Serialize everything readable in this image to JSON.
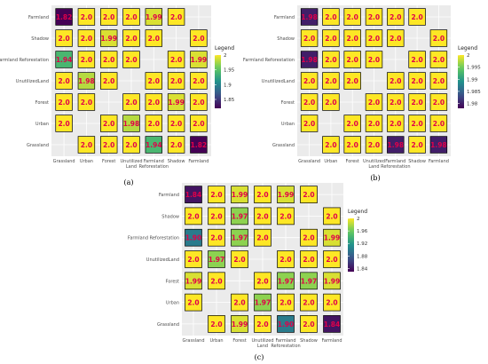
{
  "chart_data": [
    {
      "type": "heatmap",
      "label": "(a)",
      "legend": {
        "title": "Legend",
        "ticks": [
          2,
          1.95,
          1.9,
          1.85
        ],
        "range": [
          1.82,
          2.0
        ]
      },
      "rows": [
        "Farmland",
        "Shadow",
        "Farmland Reforestation",
        "UnutilizedLand",
        "Forest",
        "Urban",
        "Grassland"
      ],
      "cols": [
        "Grassland",
        "Urban",
        "Forest",
        "Unutilized Land",
        "Farmland Reforestation",
        "Shadow",
        "Farmland"
      ],
      "cells": [
        [
          "1.82",
          "2.0",
          "2.0",
          "2.0",
          "1.99",
          "2.0",
          null
        ],
        [
          "2.0",
          "2.0",
          "1.99",
          "2.0",
          "2.0",
          null,
          "2.0"
        ],
        [
          "1.94",
          "2.0",
          "2.0",
          "2.0",
          null,
          "2.0",
          "1.99"
        ],
        [
          "2.0",
          "1.98",
          "2.0",
          null,
          "2.0",
          "2.0",
          "2.0"
        ],
        [
          "2.0",
          "2.0",
          null,
          "2.0",
          "2.0",
          "1.99",
          "2.0"
        ],
        [
          "2.0",
          null,
          "2.0",
          "1.98",
          "2.0",
          "2.0",
          "2.0"
        ],
        [
          null,
          "2.0",
          "2.0",
          "2.0",
          "1.94",
          "2.0",
          "1.82"
        ]
      ]
    },
    {
      "type": "heatmap",
      "label": "(b)",
      "legend": {
        "title": "Legend",
        "ticks": [
          2,
          1.995,
          1.99,
          1.985,
          1.98
        ],
        "range": [
          1.978,
          2.0
        ]
      },
      "rows": [
        "Farmland",
        "Shadow",
        "Farmland Reforestation",
        "UnutilizedLand",
        "Forest",
        "Urban",
        "Grassland"
      ],
      "cols": [
        "Grassland",
        "Urban",
        "Forest",
        "Unutilized Land",
        "Farmland Reforestation",
        "Shadow",
        "Farmland"
      ],
      "cells": [
        [
          "1.98",
          "2.0",
          "2.0",
          "2.0",
          "2.0",
          "2.0",
          null
        ],
        [
          "2.0",
          "2.0",
          "2.0",
          "2.0",
          "2.0",
          null,
          "2.0"
        ],
        [
          "1.98",
          "2.0",
          "2.0",
          "2.0",
          null,
          "2.0",
          "2.0"
        ],
        [
          "2.0",
          "2.0",
          "2.0",
          null,
          "2.0",
          "2.0",
          "2.0"
        ],
        [
          "2.0",
          "2.0",
          null,
          "2.0",
          "2.0",
          "2.0",
          "2.0"
        ],
        [
          "2.0",
          null,
          "2.0",
          "2.0",
          "2.0",
          "2.0",
          "2.0"
        ],
        [
          null,
          "2.0",
          "2.0",
          "2.0",
          "1.98",
          "2.0",
          "1.98"
        ]
      ]
    },
    {
      "type": "heatmap",
      "label": "(c)",
      "legend": {
        "title": "Legend",
        "ticks": [
          2,
          1.96,
          1.92,
          1.88,
          1.84
        ],
        "range": [
          1.83,
          2.0
        ]
      },
      "rows": [
        "Farmland",
        "Shadow",
        "Farmland Reforestation",
        "UnutilizedLand",
        "Forest",
        "Urban",
        "Grassland"
      ],
      "cols": [
        "Grassland",
        "Urban",
        "Forest",
        "Unutilized Land",
        "Farmland Reforestation",
        "Shadow",
        "Farmland"
      ],
      "cells": [
        [
          "1.84",
          "2.0",
          "1.99",
          "2.0",
          "1.99",
          "2.0",
          null
        ],
        [
          "2.0",
          "2.0",
          "1.97",
          "2.0",
          "2.0",
          null,
          "2.0"
        ],
        [
          "1.90",
          "2.0",
          "1.97",
          "2.0",
          null,
          "2.0",
          "1.99"
        ],
        [
          "2.0",
          "1.97",
          "2.0",
          null,
          "2.0",
          "2.0",
          "2.0"
        ],
        [
          "1.99",
          "2.0",
          null,
          "2.0",
          "1.97",
          "1.97",
          "1.99"
        ],
        [
          "2.0",
          null,
          "2.0",
          "1.97",
          "2.0",
          "2.0",
          "2.0"
        ],
        [
          null,
          "2.0",
          "1.99",
          "2.0",
          "1.90",
          "2.0",
          "1.84"
        ]
      ]
    }
  ]
}
